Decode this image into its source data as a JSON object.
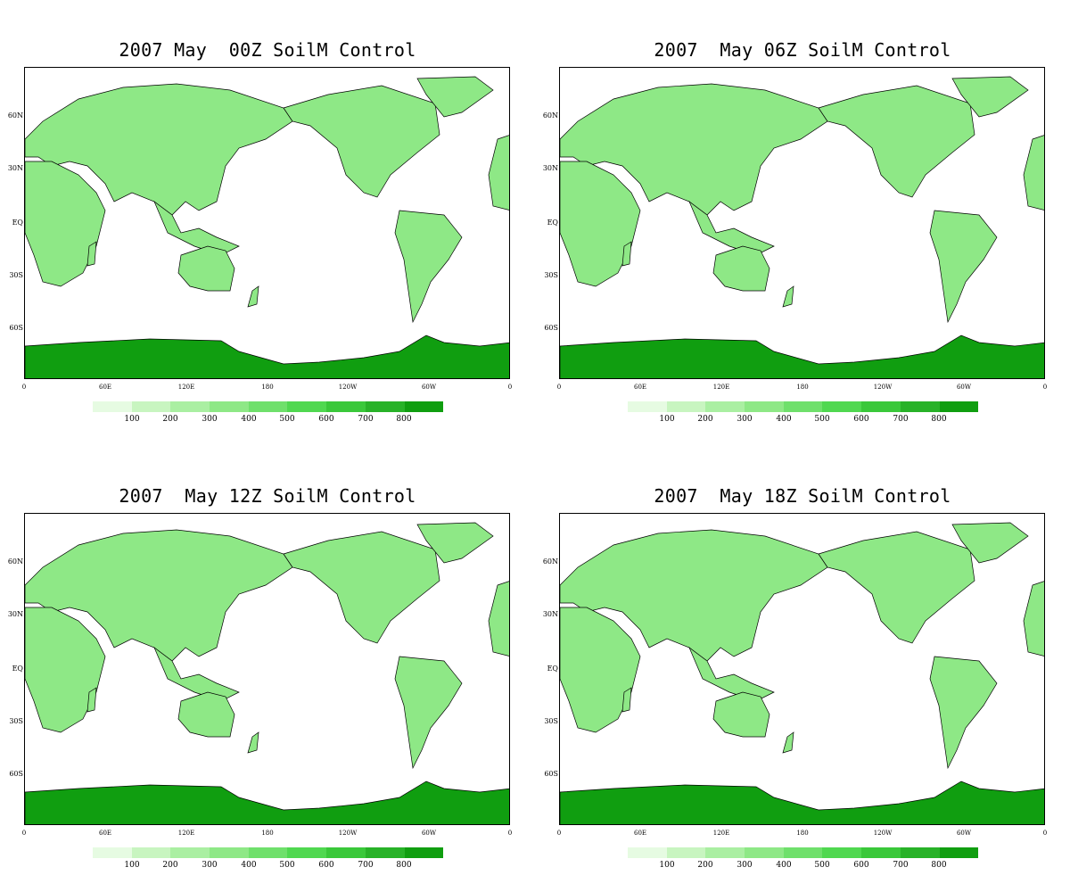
{
  "panels": [
    {
      "title": "2007 May  00Z SoilM Control",
      "label": "00Z"
    },
    {
      "title": "2007  May 06Z SoilM Control",
      "label": "06Z"
    },
    {
      "title": "2007  May 12Z SoilM Control",
      "label": "12Z"
    },
    {
      "title": "2007  May 18Z SoilM Control",
      "label": "18Z"
    }
  ],
  "lat_labels": [
    "60N",
    "30N",
    "EQ",
    "30S",
    "60S"
  ],
  "lon_labels": [
    "0",
    "60E",
    "120E",
    "180",
    "120W",
    "60W",
    "0"
  ],
  "colorbar_labels": [
    "100",
    "200",
    "300",
    "400",
    "500",
    "600",
    "700",
    "800"
  ],
  "colorbar_colors": [
    "#e6fbe2",
    "#c8f5c0",
    "#aaefa2",
    "#8ee886",
    "#6fe06b",
    "#50d850",
    "#3ac83a",
    "#28b228",
    "#109e10"
  ],
  "land_color": "#8ee886",
  "antarctica_color": "#109e10"
}
